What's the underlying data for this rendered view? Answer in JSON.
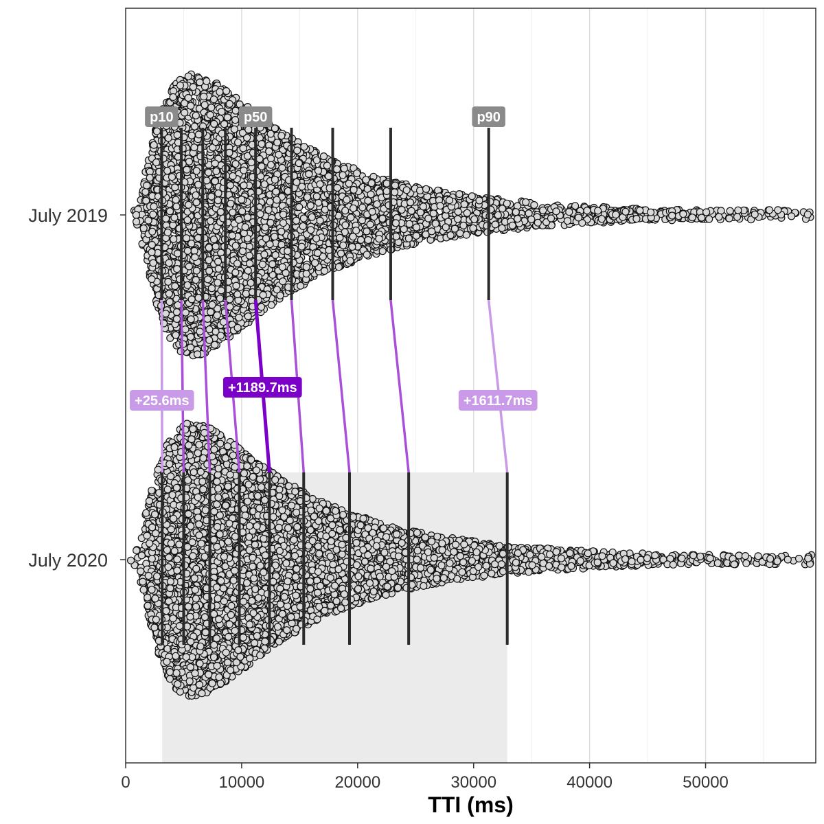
{
  "chart_data": {
    "type": "beeswarm",
    "xlabel": "TTI (ms)",
    "ylabel": "",
    "xlim": [
      0,
      59500
    ],
    "x_ticks": [
      0,
      10000,
      20000,
      30000,
      40000,
      50000
    ],
    "x_tick_labels": [
      "0",
      "10000",
      "20000",
      "30000",
      "40000",
      "50000"
    ],
    "grid": true,
    "categories": [
      "July 2019",
      "July 2020"
    ],
    "quantile_levels": [
      "p10",
      "p20",
      "p30",
      "p40",
      "p50",
      "p60",
      "p70",
      "p80",
      "p90"
    ],
    "quantile_labels": [
      "p10",
      "p50",
      "p90"
    ],
    "quantiles": {
      "July 2019": [
        3100,
        4800,
        6650,
        8600,
        11200,
        14300,
        17850,
        22850,
        31300
      ],
      "July 2020": [
        3150,
        5000,
        7250,
        9800,
        12400,
        15350,
        19300,
        24400,
        32900
      ]
    },
    "differences": [
      {
        "quantile": "p10",
        "label": "+25.6ms"
      },
      {
        "quantile": "p50",
        "label": "+1189.7ms"
      },
      {
        "quantile": "p90",
        "label": "+1611.7ms"
      }
    ],
    "highlight_band": {
      "category": "July 2020",
      "from_quantile": "p10",
      "to_quantile": "p90"
    },
    "colors": {
      "point_fill": "#d9d9d9",
      "point_stroke": "#111111",
      "quantile_line": "#2b2b2b",
      "quantile_tag": "#8a8a8a",
      "diff_strong": "#7b00c8",
      "diff_light": "#c99ae8",
      "band": "#ebebeb",
      "grid": "#e5e5e5"
    }
  }
}
